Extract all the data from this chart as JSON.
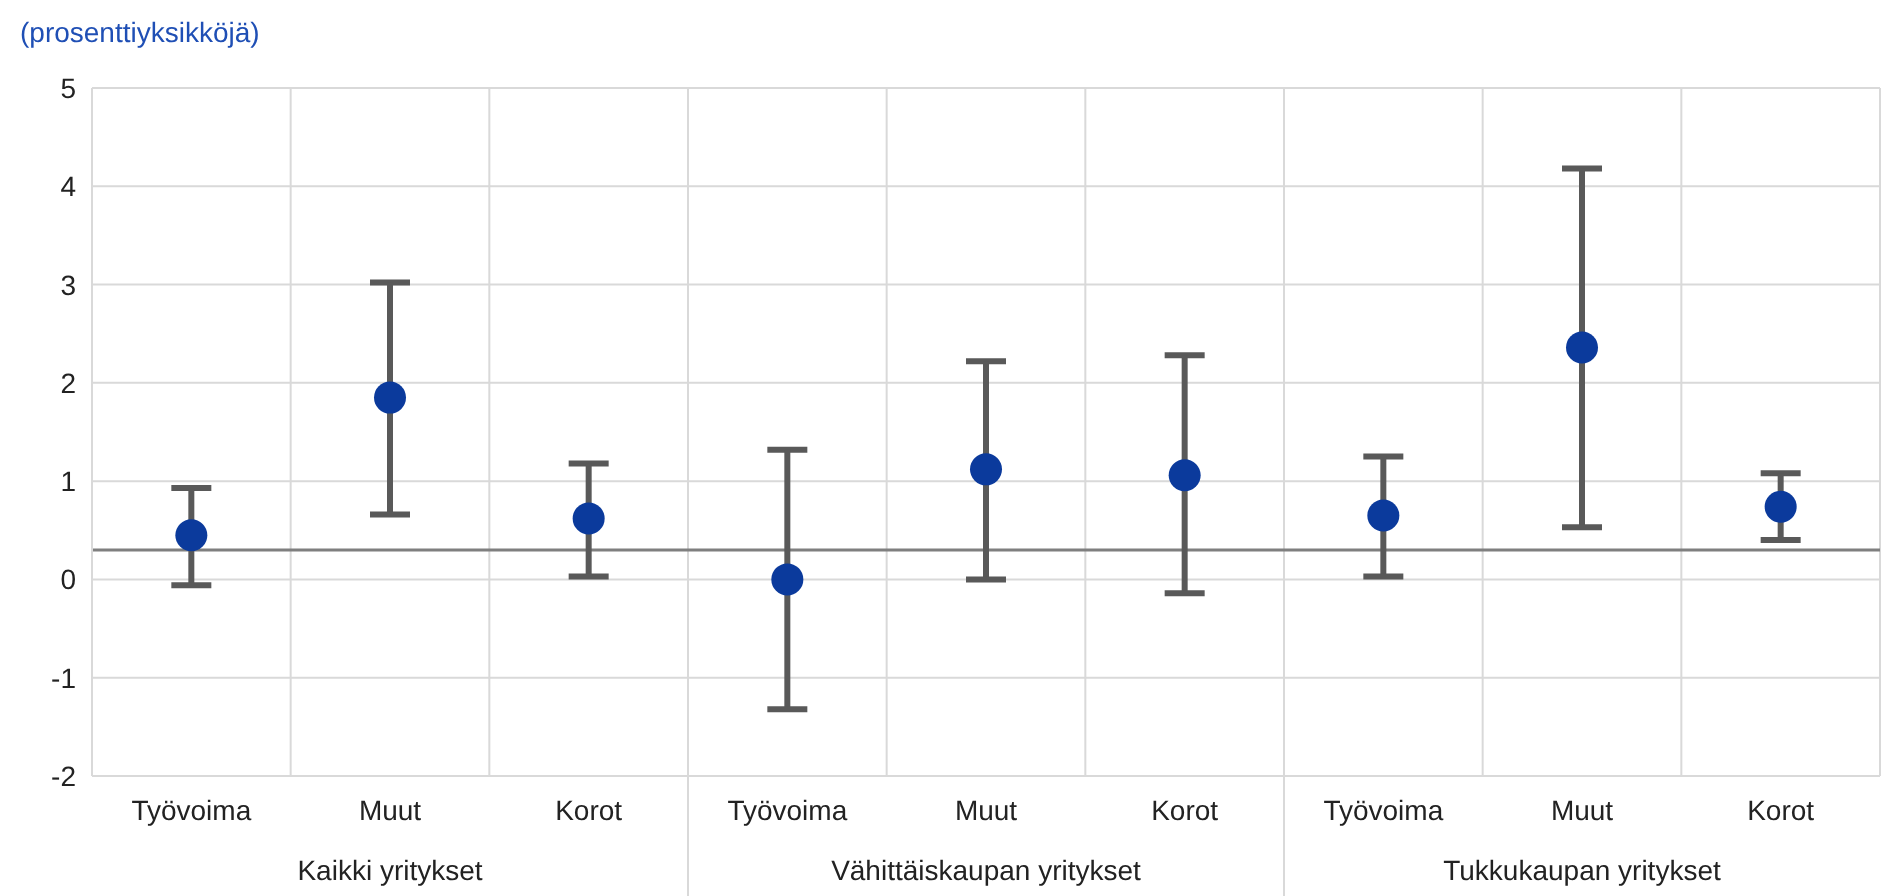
{
  "chart_data": {
    "type": "scatter",
    "ylabel": "(prosenttiyksikköjä)",
    "categories": [
      "Työvoima",
      "Muut",
      "Korot",
      "Työvoima",
      "Muut",
      "Korot",
      "Työvoima",
      "Muut",
      "Korot"
    ],
    "annotations": [
      "Kaikki yritykset",
      "Vähittäiskaupan yritykset",
      "Tukkukaupan yritykset"
    ],
    "series": [
      {
        "color": "#0b3a9c",
        "values": [
          0.45,
          1.85,
          0.62,
          0.0,
          1.12,
          1.06,
          0.65,
          2.36,
          0.74
        ],
        "errors": [
          [
            -0.06,
            0.93
          ],
          [
            0.66,
            3.02
          ],
          [
            0.03,
            1.18
          ],
          [
            -1.32,
            1.32
          ],
          [
            0.0,
            2.22
          ],
          [
            -0.14,
            2.28
          ],
          [
            0.03,
            1.25
          ],
          [
            0.53,
            4.18
          ],
          [
            0.4,
            1.08
          ]
        ]
      }
    ],
    "ylim": [
      -2,
      5
    ],
    "yticks": [
      -2,
      -1,
      0,
      1,
      2,
      3,
      4,
      5
    ],
    "grid": true,
    "marker": "circle",
    "legend": false,
    "ref_lines": [
      {
        "axis": "y",
        "value": 0.3,
        "color": "#7f7f7f"
      }
    ]
  }
}
